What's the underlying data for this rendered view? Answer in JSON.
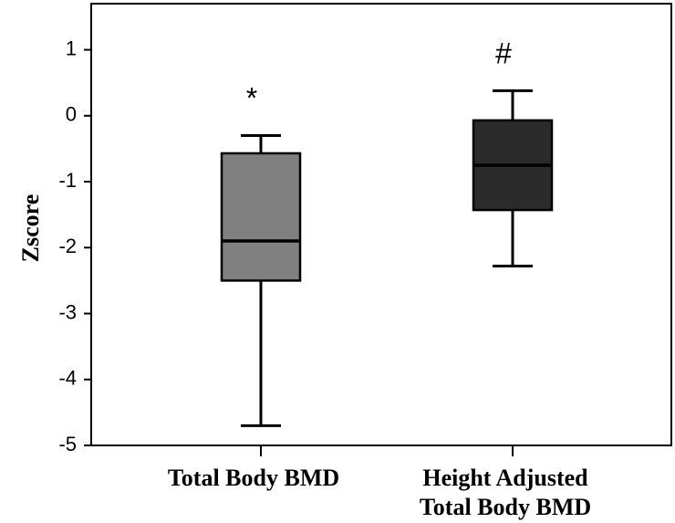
{
  "chart_data": {
    "type": "box",
    "ylabel": "Zscore",
    "xlabel": "",
    "ylim": [
      -5,
      1.7
    ],
    "yticks": [
      1,
      0,
      -1,
      -2,
      -3,
      -4,
      -5
    ],
    "grid": false,
    "categories": [
      {
        "label_lines": [
          "Total Body BMD"
        ],
        "color": "#808080",
        "annotation": "*",
        "whisker_low": -4.7,
        "q1": -2.5,
        "median": -1.9,
        "q3": -0.57,
        "whisker_high": -0.3
      },
      {
        "label_lines": [
          "Height Adjusted",
          "Total Body BMD"
        ],
        "color": "#2b2b2b",
        "annotation": "#",
        "whisker_low": -2.28,
        "q1": -1.43,
        "median": -0.75,
        "q3": -0.07,
        "whisker_high": 0.38
      }
    ]
  }
}
